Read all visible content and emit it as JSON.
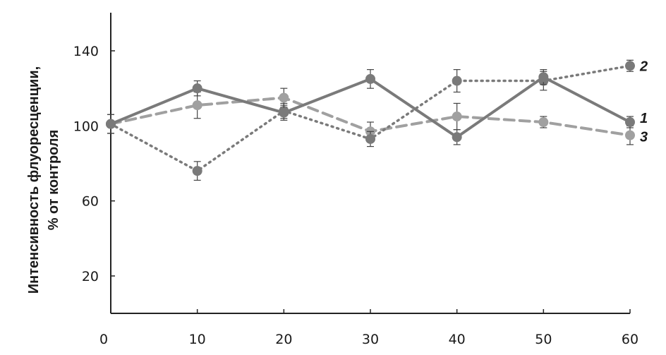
{
  "chart_data": {
    "type": "line",
    "title": "",
    "xlabel": "",
    "ylabel": "Интенсивность флуоресценции, % от контроля",
    "ylabel_lines": [
      "Интенсивность флуоресценции,",
      "% от контроля"
    ],
    "x": [
      0,
      10,
      20,
      30,
      40,
      50,
      60
    ],
    "xlim": [
      0,
      60
    ],
    "ylim": [
      0,
      160
    ],
    "y_ticks": [
      20,
      60,
      100,
      140
    ],
    "x_ticks": [
      0,
      10,
      20,
      30,
      40,
      50,
      60
    ],
    "grid": false,
    "series": [
      {
        "name": "1",
        "style": "solid",
        "color": "#7a7a7a",
        "values": [
          101,
          120,
          107,
          125,
          94,
          126,
          102
        ],
        "errors": [
          5,
          4,
          4,
          5,
          4,
          4,
          3
        ]
      },
      {
        "name": "2",
        "style": "dotted",
        "color": "#7a7a7a",
        "values": [
          101,
          76,
          108,
          93,
          124,
          124,
          132
        ],
        "errors": [
          5,
          5,
          4,
          4,
          6,
          5,
          3
        ]
      },
      {
        "name": "3",
        "style": "dashed",
        "color": "#a0a0a0",
        "values": [
          101,
          111,
          115,
          97,
          105,
          102,
          95
        ],
        "errors": [
          5,
          7,
          5,
          5,
          7,
          3,
          5
        ]
      }
    ]
  }
}
